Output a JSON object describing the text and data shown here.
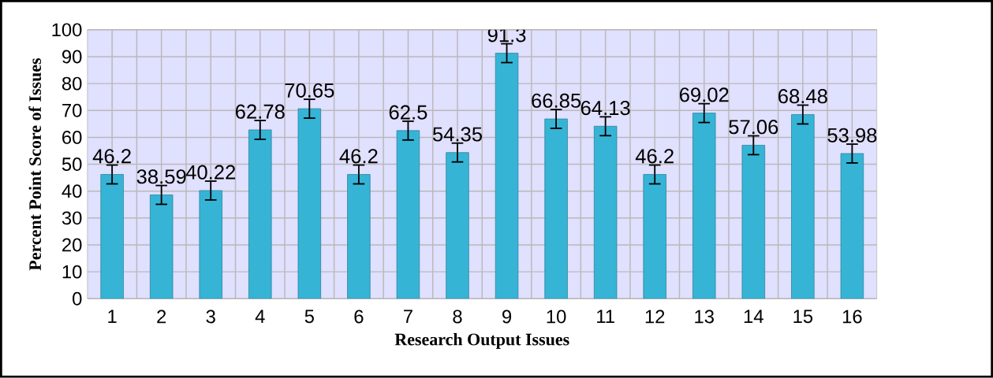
{
  "chart_data": {
    "type": "bar",
    "xlabel": "Research Output Issues",
    "ylabel": "Percent Point Score of  Issues",
    "categories": [
      "1",
      "2",
      "3",
      "4",
      "5",
      "6",
      "7",
      "8",
      "9",
      "10",
      "11",
      "12",
      "13",
      "14",
      "15",
      "16"
    ],
    "values": [
      46.2,
      38.59,
      40.22,
      62.78,
      70.65,
      46.2,
      62.5,
      54.35,
      91.3,
      66.85,
      64.13,
      46.2,
      69.02,
      57.06,
      68.48,
      53.98
    ],
    "errors": [
      3.5,
      3.5,
      3.5,
      3.5,
      3.5,
      3.5,
      3.5,
      3.5,
      3.5,
      3.5,
      3.5,
      3.5,
      3.5,
      3.5,
      3.5,
      3.5
    ],
    "color": "#36b4d6",
    "data_labels": true,
    "ylim": [
      0,
      100
    ],
    "yticks": [
      0,
      10,
      20,
      30,
      40,
      50,
      60,
      70,
      80,
      90,
      100
    ],
    "grid": true
  }
}
